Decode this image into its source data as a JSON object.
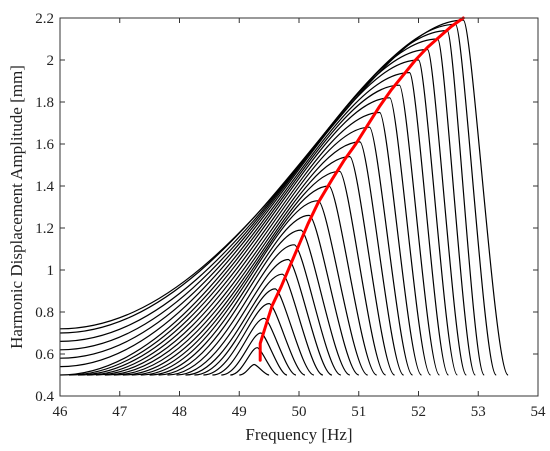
{
  "chart_data": {
    "type": "line",
    "title": "",
    "xlabel": "Frequency [Hz]",
    "ylabel": "Harmonic Displacement Amplitude [mm]",
    "xlim": [
      46,
      54
    ],
    "ylim": [
      0.4,
      2.2
    ],
    "x_ticks": [
      "46",
      "47",
      "48",
      "49",
      "50",
      "51",
      "52",
      "53",
      "54"
    ],
    "y_ticks": [
      "0.4",
      "0.6",
      "0.8",
      "1",
      "1.2",
      "1.4",
      "1.6",
      "1.8",
      "2",
      "2.2"
    ],
    "grid": false,
    "legend": "none",
    "colors": {
      "curves": "#000000",
      "backbone": "#ff0000",
      "axes": "#333333"
    },
    "frequency_response_curves": [
      {
        "peak_amplitude": 0.55,
        "points": [
          [
            49.0,
            0.5
          ],
          [
            49.25,
            0.55
          ],
          [
            49.5,
            0.5
          ]
        ]
      },
      {
        "peak_amplitude": 0.63,
        "points": [
          [
            48.85,
            0.5
          ],
          [
            49.3,
            0.63
          ],
          [
            49.65,
            0.5
          ]
        ]
      },
      {
        "peak_amplitude": 0.7,
        "points": [
          [
            48.7,
            0.5
          ],
          [
            49.36,
            0.7
          ],
          [
            49.8,
            0.5
          ]
        ]
      },
      {
        "peak_amplitude": 0.77,
        "points": [
          [
            48.55,
            0.5
          ],
          [
            49.42,
            0.77
          ],
          [
            49.95,
            0.5
          ]
        ]
      },
      {
        "peak_amplitude": 0.84,
        "points": [
          [
            48.4,
            0.5
          ],
          [
            49.5,
            0.84
          ],
          [
            50.1,
            0.5
          ]
        ]
      },
      {
        "peak_amplitude": 0.91,
        "points": [
          [
            48.25,
            0.5
          ],
          [
            49.6,
            0.91
          ],
          [
            50.25,
            0.5
          ]
        ]
      },
      {
        "peak_amplitude": 0.98,
        "points": [
          [
            48.1,
            0.5
          ],
          [
            49.72,
            0.98
          ],
          [
            50.4,
            0.5
          ]
        ]
      },
      {
        "peak_amplitude": 1.05,
        "points": [
          [
            47.95,
            0.5
          ],
          [
            49.82,
            1.05
          ],
          [
            50.55,
            0.5
          ]
        ]
      },
      {
        "peak_amplitude": 1.12,
        "points": [
          [
            47.8,
            0.5
          ],
          [
            49.92,
            1.12
          ],
          [
            50.7,
            0.5
          ]
        ]
      },
      {
        "peak_amplitude": 1.19,
        "points": [
          [
            47.65,
            0.5
          ],
          [
            50.03,
            1.19
          ],
          [
            50.85,
            0.5
          ]
        ]
      },
      {
        "peak_amplitude": 1.26,
        "points": [
          [
            47.5,
            0.5
          ],
          [
            50.17,
            1.26
          ],
          [
            51.0,
            0.5
          ]
        ]
      },
      {
        "peak_amplitude": 1.33,
        "points": [
          [
            47.35,
            0.5
          ],
          [
            50.32,
            1.33
          ],
          [
            51.15,
            0.5
          ]
        ]
      },
      {
        "peak_amplitude": 1.4,
        "points": [
          [
            47.2,
            0.5
          ],
          [
            50.5,
            1.4
          ],
          [
            51.3,
            0.5
          ]
        ]
      },
      {
        "peak_amplitude": 1.47,
        "points": [
          [
            47.05,
            0.5
          ],
          [
            50.68,
            1.47
          ],
          [
            51.45,
            0.5
          ]
        ]
      },
      {
        "peak_amplitude": 1.54,
        "points": [
          [
            46.9,
            0.5
          ],
          [
            50.85,
            1.54
          ],
          [
            51.6,
            0.5
          ]
        ]
      },
      {
        "peak_amplitude": 1.61,
        "points": [
          [
            46.75,
            0.5
          ],
          [
            51.02,
            1.61
          ],
          [
            51.75,
            0.5
          ]
        ]
      },
      {
        "peak_amplitude": 1.68,
        "points": [
          [
            46.6,
            0.5
          ],
          [
            51.18,
            1.68
          ],
          [
            51.9,
            0.5
          ]
        ]
      },
      {
        "peak_amplitude": 1.75,
        "points": [
          [
            46.45,
            0.5
          ],
          [
            51.35,
            1.75
          ],
          [
            52.05,
            0.5
          ]
        ]
      },
      {
        "peak_amplitude": 1.82,
        "points": [
          [
            46.3,
            0.5
          ],
          [
            51.52,
            1.82
          ],
          [
            52.2,
            0.5
          ]
        ]
      },
      {
        "peak_amplitude": 1.88,
        "points": [
          [
            46.15,
            0.5
          ],
          [
            51.68,
            1.88
          ],
          [
            52.35,
            0.5
          ]
        ]
      },
      {
        "peak_amplitude": 1.94,
        "points": [
          [
            46.0,
            0.5
          ],
          [
            51.85,
            1.94
          ],
          [
            52.5,
            0.5
          ]
        ]
      },
      {
        "peak_amplitude": 2.0,
        "points": [
          [
            46.0,
            0.54
          ],
          [
            52.0,
            2.0
          ],
          [
            52.65,
            0.5
          ]
        ]
      },
      {
        "peak_amplitude": 2.05,
        "points": [
          [
            46.0,
            0.58
          ],
          [
            52.15,
            2.05
          ],
          [
            52.8,
            0.5
          ]
        ]
      },
      {
        "peak_amplitude": 2.1,
        "points": [
          [
            46.0,
            0.62
          ],
          [
            52.32,
            2.1
          ],
          [
            52.95,
            0.5
          ]
        ]
      },
      {
        "peak_amplitude": 2.14,
        "points": [
          [
            46.0,
            0.66
          ],
          [
            52.48,
            2.14
          ],
          [
            53.1,
            0.5
          ]
        ]
      },
      {
        "peak_amplitude": 2.17,
        "points": [
          [
            46.0,
            0.7
          ],
          [
            52.62,
            2.17
          ],
          [
            53.3,
            0.5
          ]
        ]
      },
      {
        "peak_amplitude": 2.19,
        "points": [
          [
            46.0,
            0.72
          ],
          [
            52.75,
            2.19
          ],
          [
            53.5,
            0.5
          ]
        ]
      }
    ],
    "backbone_curve": [
      [
        49.35,
        0.57
      ],
      [
        49.35,
        0.65
      ],
      [
        49.45,
        0.74
      ],
      [
        49.55,
        0.83
      ],
      [
        49.7,
        0.92
      ],
      [
        49.85,
        1.02
      ],
      [
        50.0,
        1.12
      ],
      [
        50.15,
        1.22
      ],
      [
        50.32,
        1.32
      ],
      [
        50.55,
        1.43
      ],
      [
        50.75,
        1.52
      ],
      [
        50.95,
        1.6
      ],
      [
        51.15,
        1.69
      ],
      [
        51.35,
        1.78
      ],
      [
        51.55,
        1.86
      ],
      [
        51.75,
        1.93
      ],
      [
        51.95,
        2.0
      ],
      [
        52.15,
        2.06
      ],
      [
        52.35,
        2.11
      ],
      [
        52.55,
        2.16
      ],
      [
        52.75,
        2.2
      ]
    ]
  }
}
